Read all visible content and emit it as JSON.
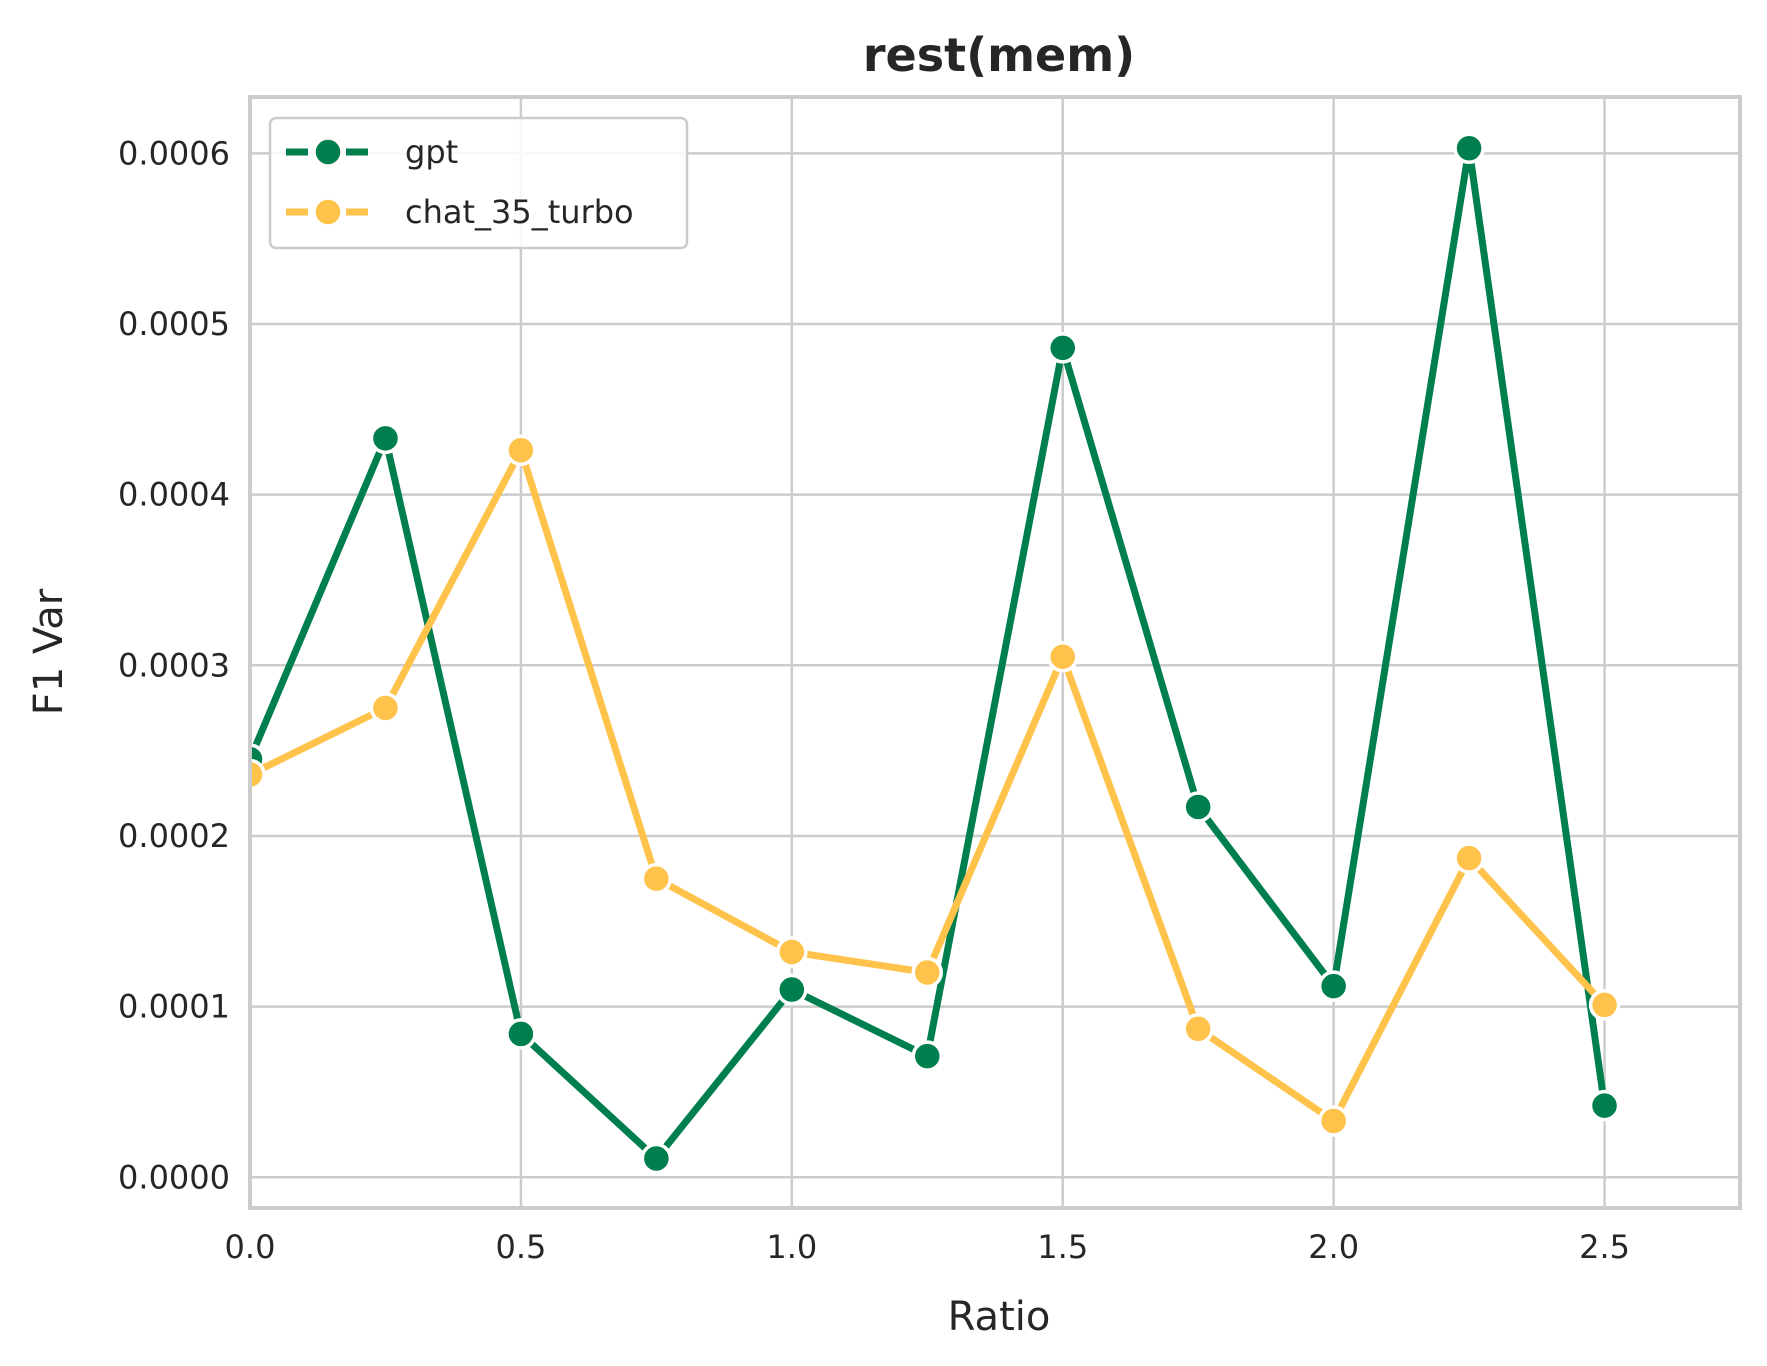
{
  "chart_data": {
    "type": "line",
    "title": "rest(mem)",
    "xlabel": "Ratio",
    "ylabel": "F1 Var",
    "xlim": [
      0.0,
      2.75
    ],
    "ylim": [
      -1.8e-05,
      0.000633
    ],
    "xticks": [
      0.0,
      0.5,
      1.0,
      1.5,
      2.0,
      2.5
    ],
    "xtick_labels": [
      "0.0",
      "0.5",
      "1.0",
      "1.5",
      "2.0",
      "2.5"
    ],
    "yticks": [
      0.0,
      0.0001,
      0.0002,
      0.0003,
      0.0004,
      0.0005,
      0.0006
    ],
    "ytick_labels": [
      "0.0000",
      "0.0001",
      "0.0002",
      "0.0003",
      "0.0004",
      "0.0005",
      "0.0006"
    ],
    "grid": true,
    "legend_position": "top-left",
    "x": [
      0.0,
      0.25,
      0.5,
      0.75,
      1.0,
      1.25,
      1.5,
      1.75,
      2.0,
      2.25,
      2.5
    ],
    "series": [
      {
        "name": "gpt",
        "color": "#007f4e",
        "values": [
          0.000245,
          0.000433,
          8.4e-05,
          1.1e-05,
          0.00011,
          7.1e-05,
          0.000486,
          0.000217,
          0.000112,
          0.000603,
          4.2e-05
        ]
      },
      {
        "name": "chat_35_turbo",
        "color": "#ffc24a",
        "values": [
          0.000236,
          0.000275,
          0.000426,
          0.000175,
          0.000132,
          0.00012,
          0.000305,
          8.7e-05,
          3.3e-05,
          0.000187,
          0.000101
        ]
      }
    ]
  }
}
